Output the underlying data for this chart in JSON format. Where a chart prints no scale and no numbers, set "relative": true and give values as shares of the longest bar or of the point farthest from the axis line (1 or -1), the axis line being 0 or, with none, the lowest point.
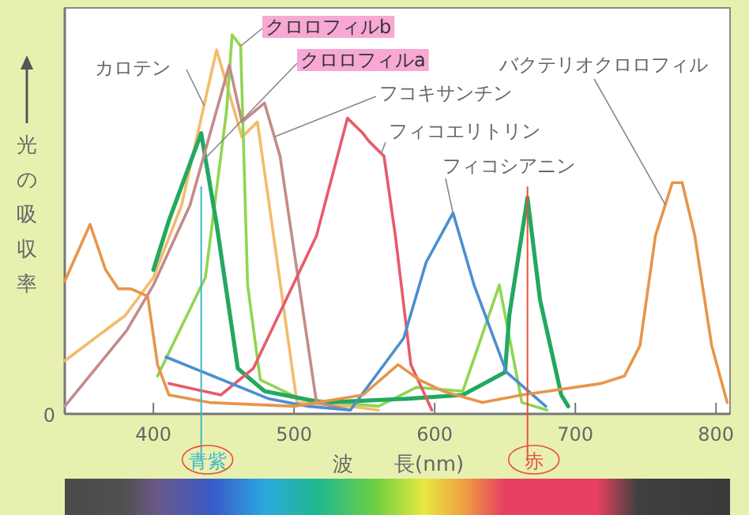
{
  "chart_data": {
    "type": "line",
    "relative": true,
    "xlabel": "波 長(nm)",
    "ylabel": "光の吸収率",
    "xlim": [
      337,
      810
    ],
    "xticks": [
      400,
      500,
      600,
      700,
      800
    ],
    "legend": false,
    "line_style": "solid",
    "annotations": [
      "0"
    ],
    "ref_lines": [
      {
        "axis": "x",
        "value": 434,
        "label": "青紫",
        "color": "#3fb6c8"
      },
      {
        "axis": "x",
        "value": 666,
        "label": "赤",
        "color": "#e8503a"
      }
    ],
    "series": [
      {
        "name": "カロテン",
        "color": "#f2bc6a",
        "x": [
          337,
          380,
          400,
          420,
          440,
          445,
          463,
          474,
          482,
          502,
          540,
          560
        ],
        "values": [
          0.14,
          0.26,
          0.36,
          0.55,
          0.88,
          0.96,
          0.73,
          0.77,
          0.56,
          0.03,
          0.02,
          0.01
        ]
      },
      {
        "name": "クロロフィルb",
        "color": "#8fd650",
        "x": [
          403,
          437,
          452,
          456,
          462,
          467,
          476,
          504,
          560,
          587,
          620,
          646,
          662,
          680
        ],
        "values": [
          0.1,
          0.36,
          0.8,
          1.0,
          0.97,
          0.34,
          0.09,
          0.04,
          0.02,
          0.07,
          0.06,
          0.34,
          0.03,
          0.01
        ]
      },
      {
        "name": "クロロフィルa",
        "color": "#23a860",
        "x": [
          400,
          411,
          434,
          445,
          460,
          479,
          520,
          580,
          620,
          650,
          653,
          666,
          675,
          690,
          695
        ],
        "values": [
          0.38,
          0.51,
          0.74,
          0.5,
          0.12,
          0.06,
          0.03,
          0.04,
          0.05,
          0.11,
          0.26,
          0.57,
          0.3,
          0.05,
          0.02
        ]
      },
      {
        "name": "フコキサンチン",
        "color": "#c48a8a",
        "x": [
          337,
          381,
          400,
          426,
          454,
          463,
          479,
          490,
          516,
          540
        ],
        "values": [
          0.02,
          0.22,
          0.34,
          0.55,
          0.92,
          0.77,
          0.82,
          0.68,
          0.03,
          0.01
        ]
      },
      {
        "name": "フィコエリトリン",
        "color": "#e85a6a",
        "x": [
          411,
          448,
          471,
          516,
          538,
          549,
          553,
          564,
          572,
          583,
          598
        ],
        "values": [
          0.08,
          0.05,
          0.12,
          0.47,
          0.78,
          0.74,
          0.72,
          0.68,
          0.47,
          0.13,
          0.01
        ]
      },
      {
        "name": "フィコシアニン",
        "color": "#4a8fd0",
        "x": [
          409,
          482,
          510,
          540,
          578,
          594,
          613,
          628,
          651,
          679
        ],
        "values": [
          0.15,
          0.04,
          0.02,
          0.01,
          0.2,
          0.4,
          0.53,
          0.34,
          0.11,
          0.02
        ]
      },
      {
        "name": "バクテリオクロロフィル",
        "color": "#e8954a",
        "x": [
          337,
          355,
          366,
          375,
          384,
          396,
          403,
          411,
          440,
          500,
          549,
          574,
          589,
          606,
          634,
          662,
          718,
          735,
          746,
          757,
          769,
          776,
          785,
          797,
          808
        ],
        "values": [
          0.35,
          0.5,
          0.38,
          0.33,
          0.33,
          0.31,
          0.13,
          0.05,
          0.03,
          0.02,
          0.05,
          0.13,
          0.09,
          0.06,
          0.03,
          0.05,
          0.08,
          0.1,
          0.18,
          0.47,
          0.61,
          0.61,
          0.47,
          0.18,
          0.03
        ]
      }
    ]
  }
}
